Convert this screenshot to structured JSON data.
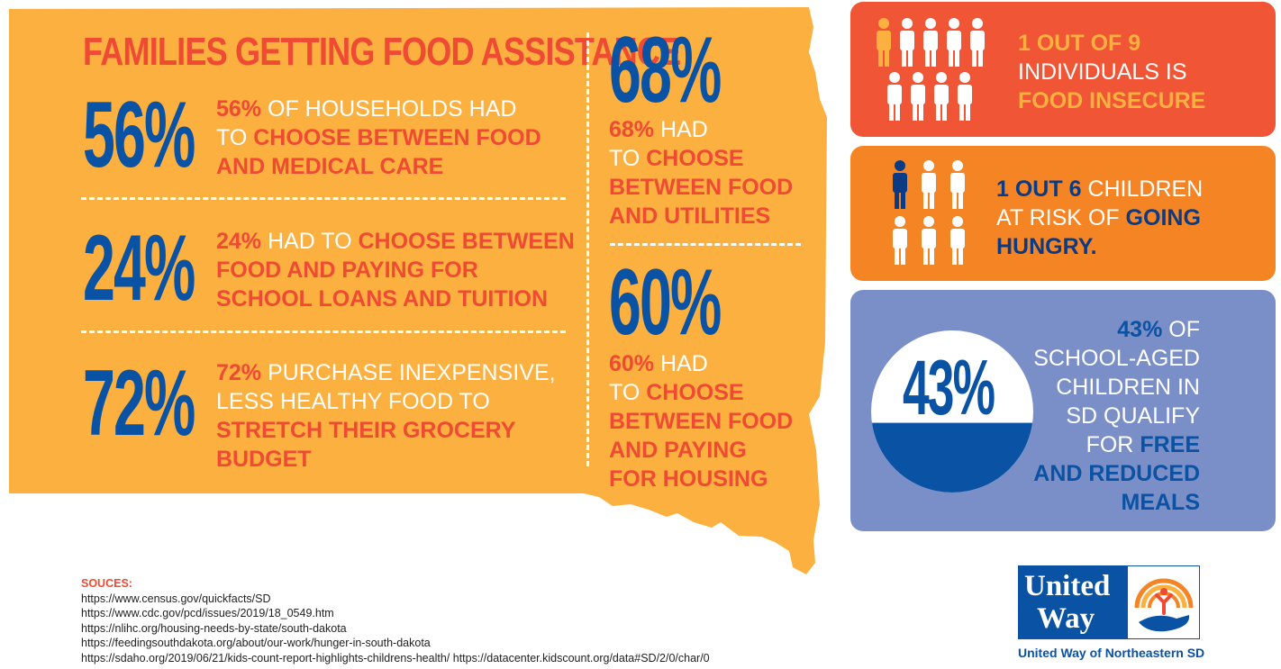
{
  "title": "FAMILIES GETTING FOOD ASSISTANCE",
  "stats_left": [
    {
      "big": "56%",
      "lines": [
        [
          {
            "t": "56%",
            "s": "hl"
          },
          {
            "t": " OF HOUSEHOLDS HAD",
            "s": "plain"
          }
        ],
        [
          {
            "t": "TO ",
            "s": "plain"
          },
          {
            "t": "CHOOSE BETWEEN FOOD",
            "s": "hl"
          }
        ],
        [
          {
            "t": "AND MEDICAL CARE",
            "s": "hl"
          }
        ]
      ]
    },
    {
      "big": "24%",
      "lines": [
        [
          {
            "t": "24%",
            "s": "hl"
          },
          {
            "t": " HAD TO ",
            "s": "plain"
          },
          {
            "t": "CHOOSE BETWEEN",
            "s": "hl"
          }
        ],
        [
          {
            "t": "FOOD AND PAYING FOR",
            "s": "hl"
          }
        ],
        [
          {
            "t": "SCHOOL LOANS AND TUITION",
            "s": "hl"
          }
        ]
      ]
    },
    {
      "big": "72%",
      "lines": [
        [
          {
            "t": "72%",
            "s": "hl"
          },
          {
            "t": " PURCHASE INEXPENSIVE,",
            "s": "plain"
          }
        ],
        [
          {
            "t": "LESS HEALTHY FOOD TO",
            "s": "plain"
          }
        ],
        [
          {
            "t": "STRETCH THEIR GROCERY",
            "s": "hl"
          }
        ],
        [
          {
            "t": "BUDGET",
            "s": "hl"
          }
        ]
      ]
    }
  ],
  "stats_right": [
    {
      "big": "68%",
      "lines": [
        [
          {
            "t": "68%",
            "s": "hl"
          },
          {
            "t": " HAD",
            "s": "plain"
          }
        ],
        [
          {
            "t": "TO ",
            "s": "plain"
          },
          {
            "t": "CHOOSE",
            "s": "hl"
          }
        ],
        [
          {
            "t": "BETWEEN FOOD",
            "s": "hl"
          }
        ],
        [
          {
            "t": "AND UTILITIES",
            "s": "hl"
          }
        ]
      ]
    },
    {
      "big": "60%",
      "lines": [
        [
          {
            "t": "60%",
            "s": "hl"
          },
          {
            "t": " HAD",
            "s": "plain"
          }
        ],
        [
          {
            "t": "TO ",
            "s": "plain"
          },
          {
            "t": "CHOOSE",
            "s": "hl"
          }
        ],
        [
          {
            "t": "BETWEEN FOOD",
            "s": "hl"
          }
        ],
        [
          {
            "t": "AND PAYING",
            "s": "hl"
          }
        ],
        [
          {
            "t": "FOR HOUSING",
            "s": "hl"
          }
        ]
      ]
    }
  ],
  "panel1": {
    "lines": [
      [
        {
          "t": "1 OUT OF 9",
          "s": "y"
        }
      ],
      [
        {
          "t": "INDIVIDUALS IS",
          "s": "w"
        }
      ],
      [
        {
          "t": "FOOD INSECURE",
          "s": "y"
        }
      ]
    ],
    "icons": "people-icons",
    "highlight_count": 1,
    "total_count": 9
  },
  "panel2": {
    "lines": [
      [
        {
          "t": "1 OUT 6",
          "s": "b"
        },
        {
          "t": " CHILDREN",
          "s": "w"
        }
      ],
      [
        {
          "t": "AT RISK OF ",
          "s": "w"
        },
        {
          "t": "GOING",
          "s": "b"
        }
      ],
      [
        {
          "t": "HUNGRY.",
          "s": "b"
        }
      ]
    ],
    "icons": "children-icons",
    "highlight_count": 1,
    "total_count": 6
  },
  "panel3": {
    "pie_label": "43%",
    "fill_fraction": 0.43,
    "lines": [
      [
        {
          "t": "43%",
          "s": "bb"
        },
        {
          "t": " OF",
          "s": "w"
        }
      ],
      [
        {
          "t": "SCHOOL-AGED",
          "s": "w"
        }
      ],
      [
        {
          "t": "CHILDREN IN",
          "s": "w"
        }
      ],
      [
        {
          "t": "SD QUALIFY",
          "s": "w"
        }
      ],
      [
        {
          "t": "FOR ",
          "s": "w"
        },
        {
          "t": "FREE",
          "s": "bb"
        }
      ],
      [
        {
          "t": "AND REDUCED",
          "s": "bb"
        }
      ],
      [
        {
          "t": "MEALS",
          "s": "bb"
        }
      ]
    ]
  },
  "sources": {
    "label": "SOUCES:",
    "items": [
      "https://www.census.gov/quickfacts/SD",
      "https://www.cdc.gov/pcd/issues/2019/18_0549.htm",
      "https://nlihc.org/housing-needs-by-state/south-dakota",
      "https://feedingsouthdakota.org/about/our-work/hunger-in-south-dakota",
      "https://sdaho.org/2019/06/21/kids-count-report-highlights-childrens-health/ https://datacenter.kidscount.org/data#SD/2/0/char/0"
    ]
  },
  "logo": {
    "line1": "United",
    "line2": "Way",
    "caption": "United Way of Northeastern SD"
  },
  "colors": {
    "orange_map": "#fbb040",
    "red": "#ef4a33",
    "blue": "#0a52a3",
    "panel1": "#f05535",
    "panel2": "#f58424",
    "panel3": "#7a8fc7"
  }
}
